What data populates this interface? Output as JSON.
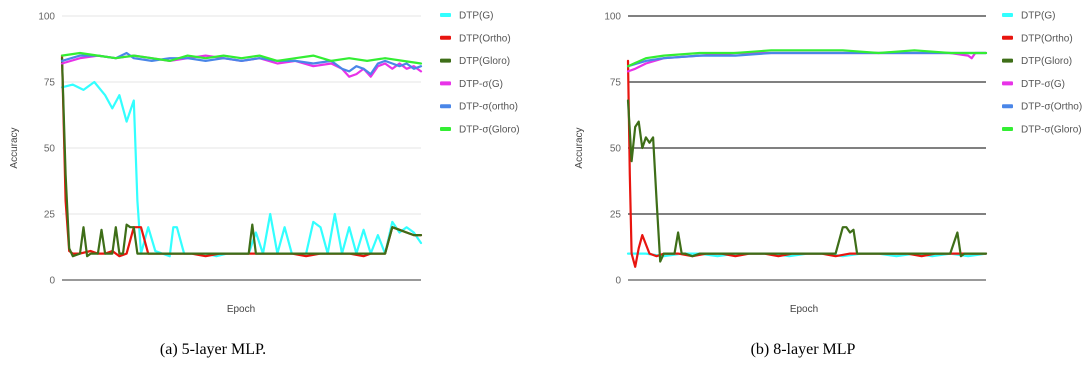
{
  "chart_data": [
    {
      "type": "line",
      "caption": "(a)  5-layer MLP.",
      "xlabel": "Epoch",
      "ylabel": "Accuracy",
      "ylim": [
        0,
        100
      ],
      "yticks": [
        0,
        25,
        50,
        75,
        100
      ],
      "grid": "light",
      "legend_position": "right",
      "series": [
        {
          "name": "DTP(G)",
          "color": "#33ffff",
          "x": [
            0,
            3,
            6,
            9,
            12,
            14,
            16,
            18,
            20,
            21,
            22,
            24,
            26,
            28,
            30,
            31,
            32,
            34,
            37,
            40,
            43,
            46,
            48,
            50,
            52,
            54,
            56,
            58,
            60,
            62,
            64,
            66,
            68,
            70,
            72,
            74,
            76,
            78,
            80,
            82,
            84,
            86,
            88,
            90,
            92,
            94,
            96,
            98,
            100
          ],
          "values": [
            73,
            74,
            72,
            75,
            70,
            65,
            70,
            60,
            68,
            30,
            10,
            20,
            11,
            10,
            9,
            20,
            20,
            10,
            10,
            10,
            9,
            10,
            10,
            10,
            10,
            18,
            10,
            25,
            10,
            20,
            10,
            10,
            10,
            22,
            20,
            10,
            25,
            10,
            20,
            10,
            19,
            10,
            17,
            10,
            22,
            18,
            20,
            18,
            14
          ]
        },
        {
          "name": "DTP(Ortho)",
          "color": "#e8150f",
          "x": [
            0,
            1,
            2,
            3,
            5,
            8,
            10,
            12,
            14,
            16,
            18,
            20,
            22,
            24,
            26,
            28,
            30,
            32,
            36,
            40,
            44,
            48,
            52,
            56,
            60,
            64,
            68,
            72,
            76,
            80,
            84,
            86,
            88,
            90,
            92,
            94,
            96,
            98,
            100
          ],
          "values": [
            85,
            30,
            11,
            10,
            10,
            11,
            10,
            10,
            11,
            9,
            10,
            20,
            20,
            10,
            10,
            10,
            10,
            10,
            10,
            9,
            10,
            10,
            10,
            10,
            10,
            10,
            9,
            10,
            10,
            10,
            9,
            10,
            10,
            10,
            20,
            19,
            18,
            17,
            17
          ]
        },
        {
          "name": "DTP(Gloro)",
          "color": "#3e6e18",
          "x": [
            0,
            1,
            2,
            3,
            5,
            6,
            7,
            8,
            10,
            11,
            12,
            13,
            14,
            15,
            16,
            17,
            18,
            19,
            20,
            21,
            22,
            23,
            24,
            25,
            26,
            27,
            28,
            30,
            32,
            34,
            36,
            38,
            40,
            42,
            44,
            46,
            48,
            50,
            52,
            53,
            54,
            56,
            58,
            60,
            62,
            64,
            66,
            68,
            70,
            72,
            74,
            76,
            78,
            80,
            82,
            84,
            86,
            88,
            90,
            92,
            94,
            96,
            98,
            100
          ],
          "values": [
            84,
            40,
            12,
            9,
            10,
            20,
            9,
            10,
            10,
            19,
            10,
            10,
            10,
            20,
            10,
            10,
            21,
            20,
            20,
            10,
            10,
            10,
            10,
            10,
            10,
            10,
            10,
            10,
            10,
            10,
            10,
            10,
            10,
            10,
            10,
            10,
            10,
            10,
            10,
            21,
            10,
            10,
            10,
            10,
            10,
            10,
            10,
            10,
            10,
            10,
            10,
            10,
            10,
            10,
            10,
            10,
            10,
            10,
            10,
            20,
            19,
            18,
            17,
            17
          ]
        },
        {
          "name": "DTP-σ(G)",
          "color": "#e833e8",
          "x": [
            0,
            5,
            10,
            15,
            20,
            25,
            30,
            35,
            40,
            45,
            50,
            55,
            60,
            65,
            70,
            75,
            78,
            80,
            82,
            84,
            86,
            88,
            90,
            92,
            94,
            96,
            98,
            100
          ],
          "values": [
            82,
            84,
            85,
            84,
            85,
            84,
            83,
            84,
            85,
            84,
            83,
            84,
            82,
            83,
            81,
            82,
            80,
            77,
            78,
            80,
            77,
            81,
            82,
            80,
            82,
            80,
            81,
            79
          ]
        },
        {
          "name": "DTP-σ(ortho)",
          "color": "#4a86e8",
          "x": [
            0,
            5,
            10,
            15,
            18,
            20,
            25,
            30,
            35,
            40,
            45,
            50,
            55,
            60,
            65,
            70,
            75,
            78,
            80,
            82,
            84,
            86,
            88,
            90,
            92,
            94,
            96,
            98,
            100
          ],
          "values": [
            83,
            85,
            85,
            84,
            86,
            84,
            83,
            84,
            84,
            83,
            84,
            83,
            84,
            83,
            83,
            82,
            83,
            80,
            79,
            81,
            80,
            78,
            82,
            83,
            82,
            81,
            82,
            80,
            81
          ]
        },
        {
          "name": "DTP-σ(Gloro)",
          "color": "#33ee33",
          "x": [
            0,
            5,
            10,
            15,
            20,
            25,
            30,
            35,
            40,
            45,
            50,
            55,
            60,
            65,
            70,
            75,
            80,
            85,
            90,
            95,
            100
          ],
          "values": [
            85,
            86,
            85,
            84,
            85,
            84,
            83,
            85,
            84,
            85,
            84,
            85,
            83,
            84,
            85,
            83,
            84,
            83,
            84,
            83,
            82
          ]
        }
      ]
    },
    {
      "type": "line",
      "caption": "(b)  8-layer MLP",
      "xlabel": "Epoch",
      "ylabel": "Accuracy",
      "ylim": [
        0,
        100
      ],
      "yticks": [
        0,
        25,
        50,
        75,
        100
      ],
      "grid": "dark",
      "legend_position": "right",
      "series": [
        {
          "name": "DTP(G)",
          "color": "#33ffff",
          "x": [
            0,
            5,
            10,
            15,
            20,
            25,
            30,
            35,
            40,
            45,
            50,
            55,
            60,
            65,
            70,
            75,
            80,
            85,
            90,
            95,
            100
          ],
          "values": [
            10,
            10,
            9,
            10,
            10,
            9,
            10,
            10,
            10,
            9,
            10,
            10,
            9,
            10,
            10,
            9,
            10,
            9,
            10,
            9,
            10
          ]
        },
        {
          "name": "DTP(Ortho)",
          "color": "#e8150f",
          "x": [
            0,
            0.5,
            1,
            2,
            3,
            4,
            6,
            8,
            10,
            14,
            18,
            22,
            26,
            30,
            34,
            38,
            42,
            46,
            50,
            54,
            58,
            62,
            66,
            70,
            74,
            78,
            82,
            86,
            90,
            94,
            98,
            100
          ],
          "values": [
            83,
            40,
            10,
            5,
            12,
            17,
            10,
            9,
            10,
            10,
            9,
            10,
            10,
            9,
            10,
            10,
            9,
            10,
            10,
            10,
            9,
            10,
            10,
            10,
            10,
            10,
            9,
            10,
            10,
            10,
            10,
            10
          ]
        },
        {
          "name": "DTP(Gloro)",
          "color": "#3e6e18",
          "x": [
            0,
            1,
            2,
            3,
            4,
            5,
            6,
            7,
            8,
            9,
            10,
            11,
            13,
            14,
            15,
            16,
            18,
            20,
            25,
            30,
            35,
            40,
            45,
            50,
            55,
            58,
            59,
            60,
            61,
            62,
            63,
            64,
            66,
            70,
            75,
            80,
            85,
            90,
            92,
            93,
            94,
            96,
            100
          ],
          "values": [
            68,
            45,
            58,
            60,
            50,
            54,
            52,
            54,
            30,
            7,
            10,
            10,
            10,
            18,
            10,
            10,
            9,
            10,
            10,
            10,
            10,
            10,
            10,
            10,
            10,
            10,
            15,
            20,
            20,
            18,
            19,
            10,
            10,
            10,
            10,
            10,
            10,
            10,
            18,
            9,
            10,
            10,
            10
          ]
        },
        {
          "name": "DTP-σ(G)",
          "color": "#e833e8",
          "x": [
            0,
            2,
            5,
            10,
            20,
            30,
            40,
            50,
            60,
            70,
            80,
            90,
            95,
            96,
            97,
            100
          ],
          "values": [
            79,
            80,
            82,
            84,
            85,
            86,
            86,
            86,
            86,
            86,
            86,
            86,
            85,
            84,
            86,
            86
          ]
        },
        {
          "name": "DTP-σ(Ortho)",
          "color": "#4a86e8",
          "x": [
            0,
            5,
            10,
            20,
            30,
            40,
            50,
            60,
            70,
            80,
            90,
            100
          ],
          "values": [
            81,
            83,
            84,
            85,
            85,
            86,
            86,
            86,
            86,
            86,
            86,
            86
          ]
        },
        {
          "name": "DTP-σ(Gloro)",
          "color": "#33ee33",
          "x": [
            0,
            5,
            10,
            20,
            30,
            40,
            50,
            60,
            70,
            80,
            90,
            100
          ],
          "values": [
            81,
            84,
            85,
            86,
            86,
            87,
            87,
            87,
            86,
            87,
            86,
            86
          ]
        }
      ]
    }
  ]
}
